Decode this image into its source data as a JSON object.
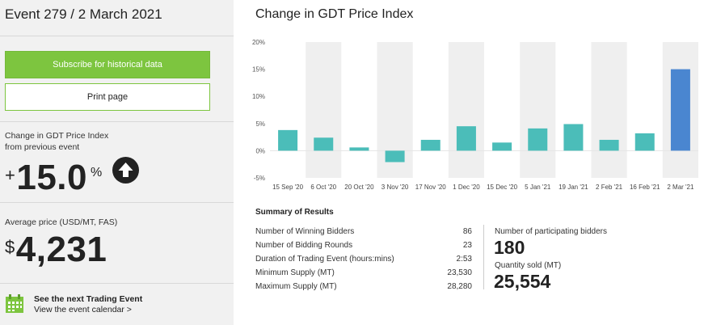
{
  "sidebar": {
    "event_title": "Event 279 / 2 March 2021",
    "subscribe_label": "Subscribe for historical data",
    "print_label": "Print page",
    "change_label_line1": "Change in GDT Price Index",
    "change_label_line2": "from previous event",
    "change_sign": "+",
    "change_value": "15.0",
    "change_unit": "%",
    "change_direction_icon": "arrow-up-icon",
    "avg_label": "Average price (USD/MT, FAS)",
    "avg_currency": "$",
    "avg_value": "4,231",
    "next_icon": "calendar-icon",
    "next_title": "See the next Trading Event",
    "next_link": "View the event calendar >"
  },
  "chart_data": {
    "type": "bar",
    "title": "Change in GDT Price Index",
    "categories": [
      "15 Sep '20",
      "6 Oct '20",
      "20 Oct '20",
      "3 Nov '20",
      "17 Nov '20",
      "1 Dec '20",
      "15 Dec '20",
      "5 Jan '21",
      "19 Jan '21",
      "2 Feb '21",
      "16 Feb '21",
      "2 Mar '21"
    ],
    "values": [
      3.8,
      2.4,
      0.6,
      -2.1,
      2.0,
      4.5,
      1.5,
      4.1,
      4.9,
      2.0,
      3.2,
      15.0
    ],
    "ylim": [
      -5,
      20
    ],
    "yticks": [
      "20%",
      "15%",
      "10%",
      "5%",
      "0%",
      "-5%"
    ],
    "ytick_values": [
      20,
      15,
      10,
      5,
      0,
      -5
    ],
    "colors": {
      "default": "#4bbdb9",
      "highlight": "#4a86d0",
      "band": "#efefef"
    },
    "highlight_index": 11
  },
  "summary": {
    "title": "Summary of Results",
    "rows": [
      {
        "label": "Number of Winning Bidders",
        "value": "86"
      },
      {
        "label": "Number of Bidding Rounds",
        "value": "23"
      },
      {
        "label": "Duration of Trading Event (hours:mins)",
        "value": "2:53"
      },
      {
        "label": "Minimum Supply (MT)",
        "value": "23,530"
      },
      {
        "label": "Maximum Supply (MT)",
        "value": "28,280"
      }
    ],
    "bidders_label": "Number of participating bidders",
    "bidders_value": "180",
    "qty_label": "Quantity sold (MT)",
    "qty_value": "25,554"
  }
}
